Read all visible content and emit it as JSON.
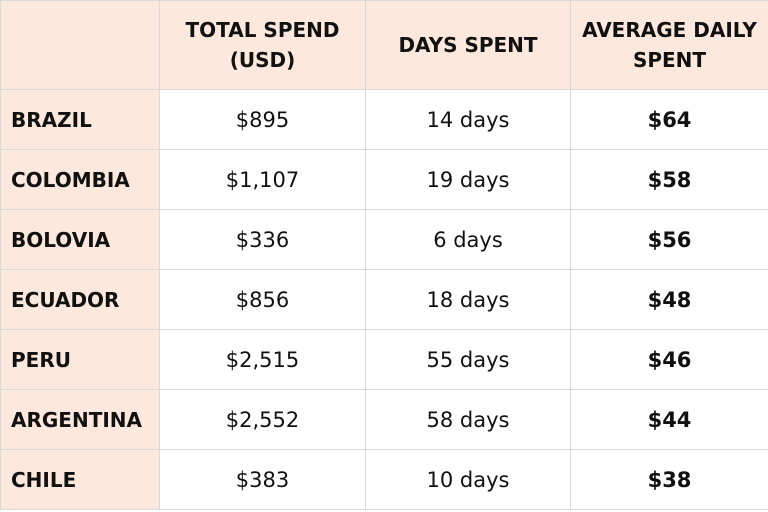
{
  "table": {
    "columns": [
      "",
      "TOTAL SPEND (USD)",
      "DAYS SPENT",
      "AVERAGE DAILY SPENT"
    ],
    "rows": [
      {
        "country": "BRAZIL",
        "total": "$895",
        "days": "14 days",
        "avg": "$64"
      },
      {
        "country": "COLOMBIA",
        "total": "$1,107",
        "days": "19 days",
        "avg": "$58"
      },
      {
        "country": "BOLOVIA",
        "total": "$336",
        "days": "6 days",
        "avg": "$56"
      },
      {
        "country": "ECUADOR",
        "total": "$856",
        "days": "18 days",
        "avg": "$48"
      },
      {
        "country": "PERU",
        "total": "$2,515",
        "days": "55 days",
        "avg": "$46"
      },
      {
        "country": "ARGENTINA",
        "total": "$2,552",
        "days": "58 days",
        "avg": "$44"
      },
      {
        "country": "CHILE",
        "total": "$383",
        "days": "10 days",
        "avg": "$38"
      }
    ]
  },
  "colors": {
    "header_bg": "#fde8dd",
    "border": "#d9d9d9",
    "text": "#111111"
  }
}
